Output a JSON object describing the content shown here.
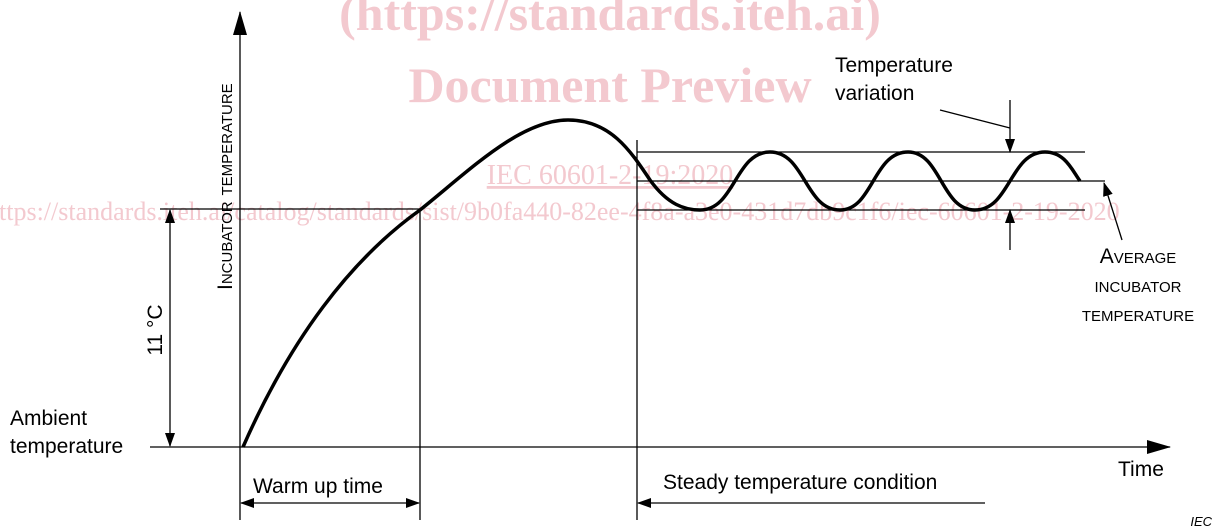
{
  "watermark": {
    "line1": "(https://standards.iteh.ai)",
    "line2": "Document Preview",
    "line3": "IEC 60601-2-19:2020",
    "line4": "https://standards.iteh.ai/catalog/standards/sist/9b0fa440-82ee-4f8a-a3e0-431d7db9c1f6/iec-60601-2-19-2020"
  },
  "labels": {
    "y_axis": "Incubator temperature",
    "x_axis": "Time",
    "delta": "11 °C",
    "ambient_1": "Ambient",
    "ambient_2": "temperature",
    "warm_up": "Warm up time",
    "steady": "Steady temperature condition",
    "variation_1": "Temperature",
    "variation_2": "variation",
    "average_1": "Average",
    "average_2": "incubator",
    "average_3": "temperature",
    "source": "IEC"
  }
}
